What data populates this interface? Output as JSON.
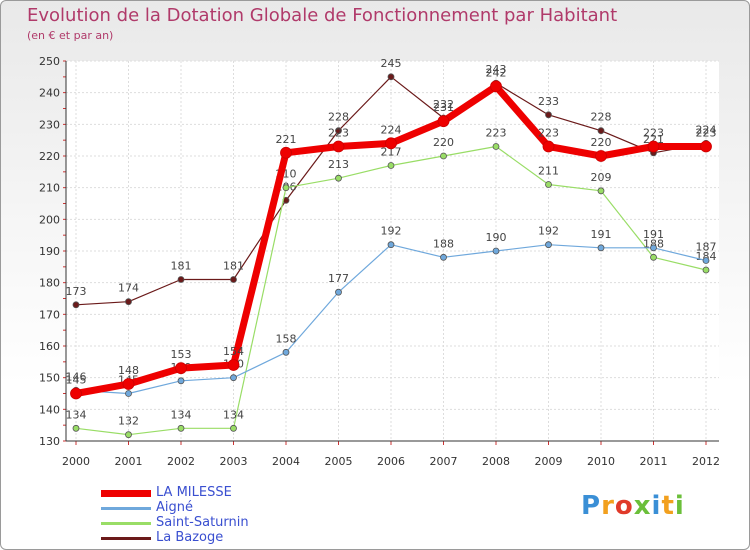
{
  "title": "Evolution de la Dotation Globale de Fonctionnement par Habitant",
  "subtitle": "(en € et par an)",
  "logo_letters": [
    "P",
    "r",
    "o",
    "x",
    "i",
    "t",
    "i"
  ],
  "chart_data": {
    "type": "line",
    "title": "Evolution de la Dotation Globale de Fonctionnement par Habitant",
    "ylabel": "(en € et par an)",
    "xlabel": "",
    "ylim": [
      130,
      250
    ],
    "yticks": [
      130,
      140,
      150,
      160,
      170,
      180,
      190,
      200,
      210,
      220,
      230,
      240,
      250
    ],
    "categories": [
      "2000",
      "2001",
      "2002",
      "2003",
      "2004",
      "2005",
      "2006",
      "2007",
      "2008",
      "2009",
      "2010",
      "2011",
      "2012"
    ],
    "grid": true,
    "series": [
      {
        "name": "La Bazoge",
        "color": "#6b1a1a",
        "width": 1.2,
        "values": [
          173,
          174,
          181,
          181,
          206,
          228,
          245,
          232,
          243,
          233,
          228,
          221,
          224
        ]
      },
      {
        "name": "Saint-Saturnin",
        "color": "#99dd66",
        "width": 1.2,
        "values": [
          134,
          132,
          134,
          134,
          210,
          213,
          217,
          220,
          223,
          211,
          209,
          188,
          184
        ]
      },
      {
        "name": "Aigné",
        "color": "#6fa8dc",
        "width": 1.2,
        "values": [
          146,
          145,
          149,
          150,
          158,
          177,
          192,
          188,
          190,
          192,
          191,
          191,
          187
        ]
      },
      {
        "name": "LA MILESSE",
        "color": "#ee0000",
        "width": 7,
        "values": [
          145,
          148,
          153,
          154,
          221,
          223,
          224,
          231,
          242,
          223,
          220,
          223,
          223
        ]
      }
    ],
    "legend_order": [
      "LA MILESSE",
      "Aigné",
      "Saint-Saturnin",
      "La Bazoge"
    ]
  }
}
